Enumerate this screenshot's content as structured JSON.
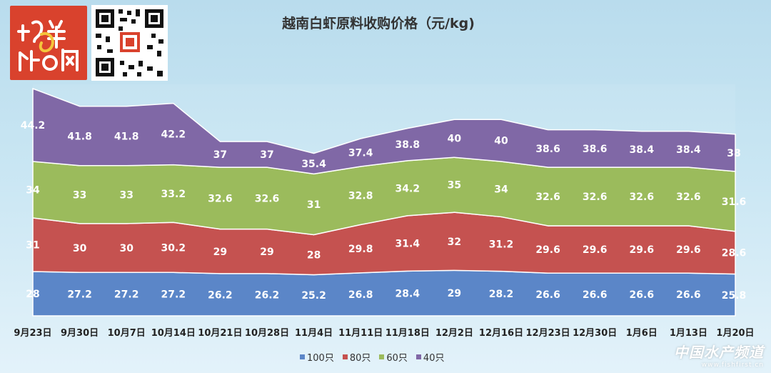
{
  "header": {
    "title": "越南白虾原料收购价格（元/kg)",
    "logo_text": "海鲜指南",
    "qr_icon": "qr-code-icon"
  },
  "watermark": {
    "main": "中国水产频道",
    "sub": "www.fishfirst.cn"
  },
  "colors": {
    "s100": "#5b86c8",
    "s80": "#c55250",
    "s60": "#9bbb5c",
    "s40": "#8068a6",
    "logo_bg": "#d9422d"
  },
  "chart_data": {
    "type": "area",
    "stacked": true,
    "title": "越南白虾原料收购价格（元/kg)",
    "categories": [
      "9月23日",
      "9月30日",
      "10月7日",
      "10月14日",
      "10月21日",
      "10月28日",
      "11月4日",
      "11月11日",
      "11月18日",
      "12月2日",
      "12月16日",
      "12月23日",
      "12月30日",
      "1月6日",
      "1月13日",
      "1月20日"
    ],
    "series": [
      {
        "name": "100只",
        "values": [
          28,
          27.2,
          27.2,
          27.2,
          26.2,
          26.2,
          25.2,
          26.8,
          28.4,
          29,
          28.2,
          26.6,
          26.6,
          26.6,
          26.6,
          25.8
        ]
      },
      {
        "name": "80只",
        "values": [
          31,
          30,
          30,
          30.2,
          29,
          29,
          28,
          29.8,
          31.4,
          32,
          31.2,
          29.6,
          29.6,
          29.6,
          29.6,
          28.6
        ]
      },
      {
        "name": "60只",
        "values": [
          34,
          33,
          33,
          33.2,
          32.6,
          32.6,
          31,
          32.8,
          34.2,
          35,
          34,
          32.6,
          32.6,
          32.6,
          32.6,
          31.6
        ]
      },
      {
        "name": "40只",
        "values": [
          44.2,
          41.8,
          41.8,
          42.2,
          37,
          37,
          35.4,
          37.4,
          38.8,
          40,
          40,
          38.6,
          38.6,
          38.4,
          38.4,
          38
        ]
      }
    ],
    "data_labels": true,
    "legend_position": "bottom"
  }
}
